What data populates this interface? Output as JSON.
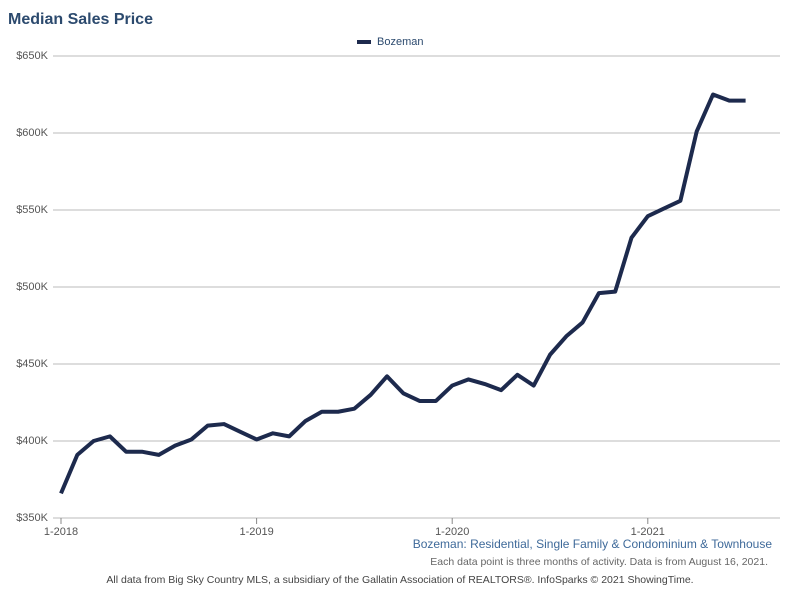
{
  "chart_data": {
    "type": "line",
    "title": "Median Sales Price",
    "subtitle": "Bozeman: Residential, Single Family & Condominium & Townhouse",
    "note": "Each data point is three months of activity. Data is from August 16, 2021.",
    "source": "All data from Big Sky Country MLS, a subsidiary of the Gallatin Association of REALTORS®. InfoSparks © 2021 ShowingTime.",
    "categories": [
      "1-2018",
      null,
      null,
      null,
      null,
      null,
      null,
      null,
      null,
      null,
      null,
      null,
      "1-2019",
      null,
      null,
      null,
      null,
      null,
      null,
      null,
      null,
      null,
      null,
      null,
      "1-2020",
      null,
      null,
      null,
      null,
      null,
      null,
      null,
      null,
      null,
      null,
      null,
      "1-2021",
      null,
      null,
      null,
      null,
      null,
      null
    ],
    "series": [
      {
        "name": "Bozeman",
        "color": "#1d2a4d",
        "values": [
          366000,
          391000,
          400000,
          403000,
          393000,
          393000,
          391000,
          397000,
          401000,
          410000,
          411000,
          406000,
          401000,
          405000,
          403000,
          413000,
          419000,
          419000,
          421000,
          430000,
          442000,
          431000,
          426000,
          426000,
          436000,
          440000,
          437000,
          433000,
          443000,
          436000,
          456000,
          468000,
          477000,
          496000,
          497000,
          532000,
          546000,
          551000,
          556000,
          601000,
          625000,
          621000,
          621000
        ]
      }
    ],
    "ylim": [
      350000,
      650000
    ],
    "yticks": [
      {
        "value": 350000,
        "label": "$350K"
      },
      {
        "value": 400000,
        "label": "$400K"
      },
      {
        "value": 450000,
        "label": "$450K"
      },
      {
        "value": 500000,
        "label": "$500K"
      },
      {
        "value": 550000,
        "label": "$550K"
      },
      {
        "value": 600000,
        "label": "$600K"
      },
      {
        "value": 650000,
        "label": "$650K"
      }
    ],
    "grid": true
  }
}
